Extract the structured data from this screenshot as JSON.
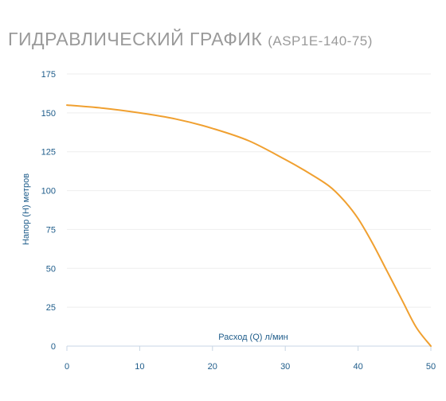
{
  "title": {
    "main": "ГИДРАВЛИЧЕСКИЙ ГРАФИК",
    "model": "(ASP1E-140-75)"
  },
  "chart_data": {
    "type": "line",
    "xlabel": "Расход (Q) л/мин",
    "ylabel": "Напор (Н) метров",
    "xlim": [
      0,
      50
    ],
    "ylim": [
      0,
      175
    ],
    "xticks": [
      0,
      10,
      20,
      30,
      40,
      50
    ],
    "yticks": [
      0,
      25,
      50,
      75,
      100,
      125,
      150,
      175
    ],
    "grid": "horizontal",
    "line_color": "#f0a030",
    "series": [
      {
        "x": [
          0,
          5,
          10,
          15,
          20,
          25,
          30,
          33,
          36,
          38,
          40,
          42,
          44,
          46,
          48,
          50
        ],
        "y": [
          155,
          153,
          150,
          146,
          140,
          132,
          120,
          112,
          103,
          94,
          82,
          66,
          48,
          30,
          12,
          0
        ]
      }
    ]
  }
}
